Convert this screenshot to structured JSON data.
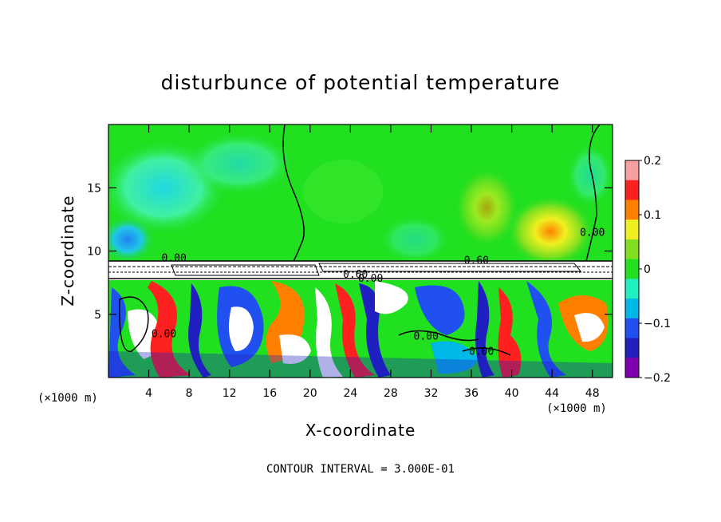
{
  "chart_data": {
    "type": "heatmap",
    "title": "disturbunce of potential temperature",
    "xlabel": "X-coordinate",
    "ylabel": "Z-coordinate",
    "x_unit": "(×1000 m)",
    "z_unit": "(×1000 m)",
    "xlim": [
      0,
      50
    ],
    "ylim": [
      0,
      20
    ],
    "x_ticks": [
      4,
      8,
      12,
      16,
      20,
      24,
      28,
      32,
      36,
      40,
      44,
      48
    ],
    "y_ticks": [
      5,
      10,
      15
    ],
    "colorbar": {
      "min": -0.2,
      "max": 0.2,
      "ticks": [
        0.2,
        0.1,
        0,
        -0.1,
        -0.2
      ],
      "tick_labels": [
        "0.2",
        "0.1",
        "0",
        "−0.1",
        "−0.2"
      ],
      "colors": [
        "#f8a0a0",
        "#ff2020",
        "#ff8000",
        "#f0f020",
        "#80e020",
        "#20e020",
        "#20f0c0",
        "#00b8e8",
        "#2050f0",
        "#2020c0",
        "#8000b0"
      ]
    },
    "contour_labels": [
      {
        "text": "0.00",
        "x": 6.5,
        "z": 9.5
      },
      {
        "text": "0.60",
        "x": 36.5,
        "z": 9.3
      },
      {
        "text": "0.60",
        "x": 24.5,
        "z": 8.2
      },
      {
        "text": "0.00",
        "x": 26.0,
        "z": 7.9
      },
      {
        "text": "0.00",
        "x": 48.0,
        "z": 11.5
      },
      {
        "text": "0.00",
        "x": 5.5,
        "z": 3.5
      },
      {
        "text": "0.00",
        "x": 31.5,
        "z": 3.3
      },
      {
        "text": "0.00",
        "x": 37.0,
        "z": 2.1
      }
    ],
    "grid": false,
    "legend": "right colorbar"
  },
  "footer": {
    "contour_interval": "CONTOUR INTERVAL = 3.000E-01"
  }
}
